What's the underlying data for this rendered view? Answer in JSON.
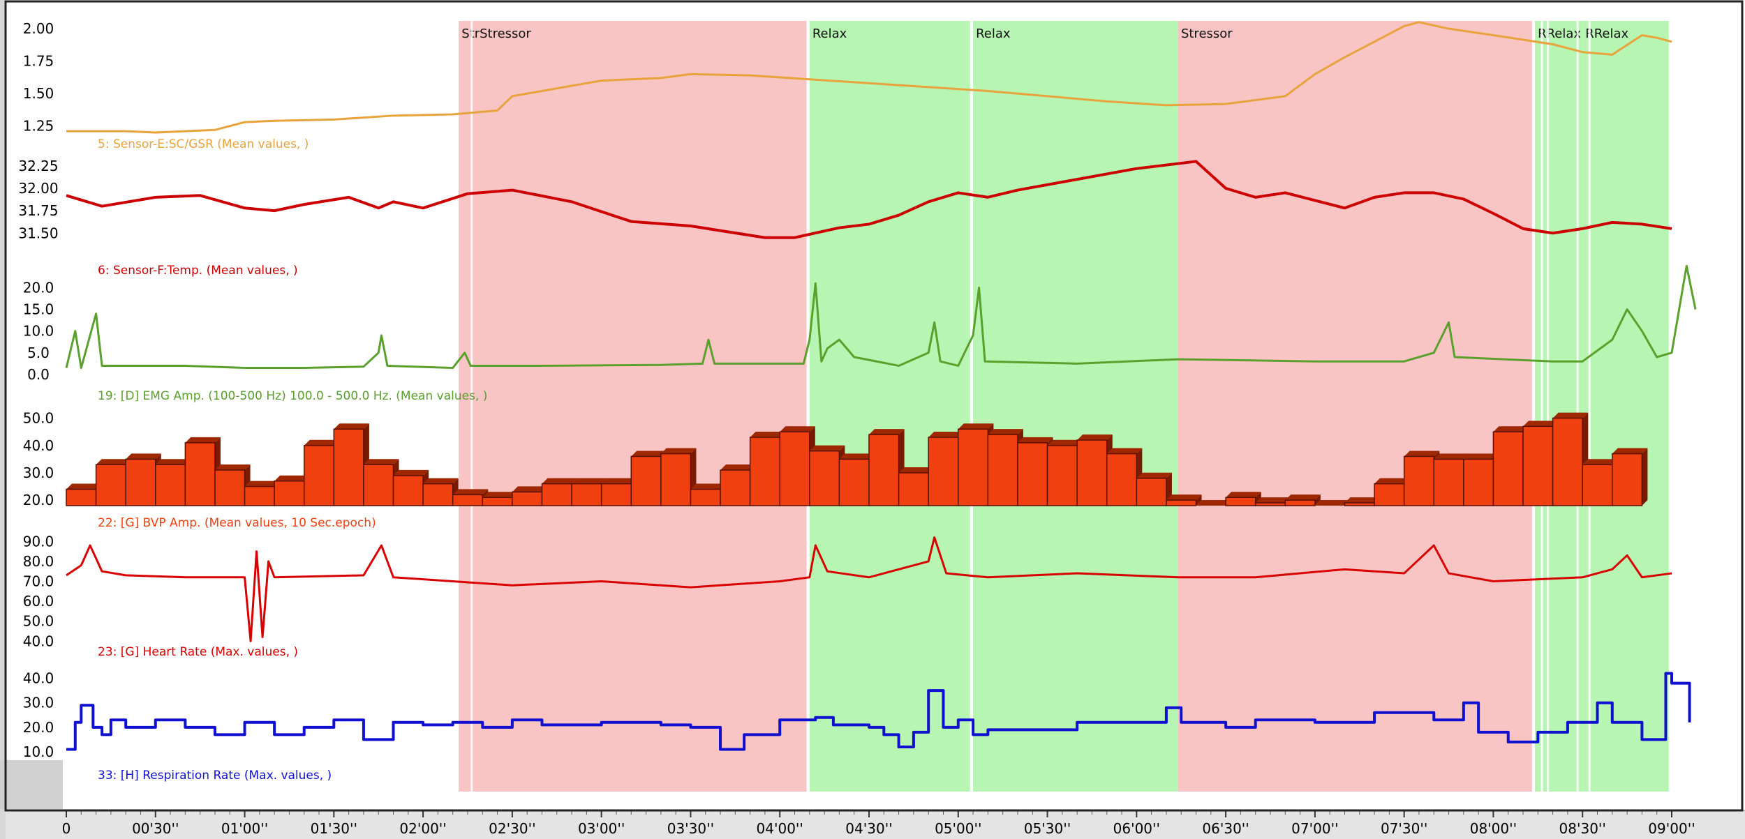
{
  "chart_data": {
    "type": "line",
    "x_axis": {
      "range_seconds": [
        0,
        540
      ],
      "tick_labels": [
        "0",
        "00'30''",
        "01'00''",
        "01'30''",
        "02'00''",
        "02'30''",
        "03'00''",
        "03'30''",
        "04'00''",
        "04'30''",
        "05'00''",
        "05'30''",
        "06'00''",
        "06'30''",
        "07'00''",
        "07'30''",
        "08'00''",
        "08'30''",
        "09'00''"
      ],
      "tick_values": [
        0,
        30,
        60,
        90,
        120,
        150,
        180,
        210,
        240,
        270,
        300,
        330,
        360,
        390,
        420,
        450,
        480,
        510,
        540
      ]
    },
    "segments": [
      {
        "label": "StrStressor",
        "start": 132,
        "end": 249,
        "color": "#f9c4c4"
      },
      {
        "label": "Relax",
        "start": 250,
        "end": 304,
        "color": "#b7f5b2"
      },
      {
        "label": "Relax",
        "start": 305,
        "end": 374,
        "color": "#b7f5b2"
      },
      {
        "label": "Stressor",
        "start": 374,
        "end": 493,
        "color": "#f9c4c4"
      },
      {
        "label": "RRelax",
        "start": 494,
        "end": 510,
        "color": "#b7f5b2"
      },
      {
        "label": "RRelax",
        "start": 510,
        "end": 539,
        "color": "#b7f5b2"
      }
    ],
    "panels": [
      {
        "id": "gsr",
        "label": "5: Sensor-E:SC/GSR (Mean values, )",
        "color": "#e8a33c",
        "yticks": [
          "2.00",
          "1.75",
          "1.50",
          "1.25"
        ],
        "ytick_values": [
          2.0,
          1.75,
          1.5,
          1.25
        ],
        "ylim": [
          1.2,
          2.06
        ],
        "line_width": 3,
        "series": [
          [
            0,
            1.21
          ],
          [
            20,
            1.21
          ],
          [
            30,
            1.2
          ],
          [
            50,
            1.22
          ],
          [
            60,
            1.28
          ],
          [
            70,
            1.29
          ],
          [
            90,
            1.3
          ],
          [
            110,
            1.33
          ],
          [
            130,
            1.34
          ],
          [
            145,
            1.37
          ],
          [
            150,
            1.48
          ],
          [
            160,
            1.52
          ],
          [
            170,
            1.56
          ],
          [
            180,
            1.6
          ],
          [
            200,
            1.62
          ],
          [
            210,
            1.65
          ],
          [
            230,
            1.64
          ],
          [
            250,
            1.61
          ],
          [
            270,
            1.58
          ],
          [
            290,
            1.55
          ],
          [
            310,
            1.52
          ],
          [
            330,
            1.48
          ],
          [
            350,
            1.44
          ],
          [
            370,
            1.41
          ],
          [
            390,
            1.42
          ],
          [
            400,
            1.45
          ],
          [
            410,
            1.48
          ],
          [
            420,
            1.65
          ],
          [
            430,
            1.78
          ],
          [
            440,
            1.9
          ],
          [
            450,
            2.02
          ],
          [
            455,
            2.05
          ],
          [
            465,
            2.0
          ],
          [
            480,
            1.95
          ],
          [
            500,
            1.88
          ],
          [
            510,
            1.82
          ],
          [
            520,
            1.8
          ],
          [
            522,
            1.83
          ],
          [
            530,
            1.95
          ],
          [
            535,
            1.93
          ],
          [
            540,
            1.9
          ]
        ]
      },
      {
        "id": "temp",
        "label": "6: Sensor-F:Temp. (Mean values, )",
        "color": "#cc0000",
        "yticks": [
          "32.25",
          "32.00",
          "31.75",
          "31.50"
        ],
        "ytick_values": [
          32.25,
          32.0,
          31.75,
          31.5
        ],
        "ylim": [
          31.3,
          32.35
        ],
        "line_width": 4,
        "series": [
          [
            0,
            31.92
          ],
          [
            12,
            31.8
          ],
          [
            30,
            31.9
          ],
          [
            45,
            31.92
          ],
          [
            60,
            31.78
          ],
          [
            70,
            31.75
          ],
          [
            80,
            31.82
          ],
          [
            95,
            31.9
          ],
          [
            105,
            31.78
          ],
          [
            110,
            31.85
          ],
          [
            120,
            31.78
          ],
          [
            135,
            31.94
          ],
          [
            150,
            31.98
          ],
          [
            170,
            31.85
          ],
          [
            190,
            31.63
          ],
          [
            210,
            31.58
          ],
          [
            235,
            31.45
          ],
          [
            245,
            31.45
          ],
          [
            260,
            31.56
          ],
          [
            270,
            31.6
          ],
          [
            280,
            31.7
          ],
          [
            290,
            31.85
          ],
          [
            300,
            31.95
          ],
          [
            310,
            31.9
          ],
          [
            320,
            31.98
          ],
          [
            340,
            32.1
          ],
          [
            360,
            32.22
          ],
          [
            380,
            32.3
          ],
          [
            390,
            32.0
          ],
          [
            400,
            31.9
          ],
          [
            410,
            31.95
          ],
          [
            430,
            31.78
          ],
          [
            440,
            31.9
          ],
          [
            450,
            31.95
          ],
          [
            460,
            31.95
          ],
          [
            470,
            31.88
          ],
          [
            480,
            31.72
          ],
          [
            490,
            31.55
          ],
          [
            500,
            31.5
          ],
          [
            510,
            31.55
          ],
          [
            520,
            31.62
          ],
          [
            530,
            31.6
          ],
          [
            540,
            31.55
          ]
        ]
      },
      {
        "id": "emg",
        "label": "19: [D] EMG Amp. (100-500 Hz)  100.0 - 500.0 Hz. (Mean values, )",
        "color": "#5aa02c",
        "yticks": [
          "20.0",
          "15.0",
          "10.0",
          "5.0",
          "0.0"
        ],
        "ytick_values": [
          20,
          15,
          10,
          5,
          0
        ],
        "ylim": [
          -0.5,
          22
        ],
        "line_width": 3,
        "series": [
          [
            0,
            1.5
          ],
          [
            3,
            10
          ],
          [
            5,
            1.5
          ],
          [
            10,
            14
          ],
          [
            12,
            2
          ],
          [
            40,
            2
          ],
          [
            60,
            1.5
          ],
          [
            80,
            1.5
          ],
          [
            100,
            1.8
          ],
          [
            105,
            5
          ],
          [
            106,
            9
          ],
          [
            108,
            2
          ],
          [
            130,
            1.5
          ],
          [
            134,
            5
          ],
          [
            136,
            2
          ],
          [
            160,
            2
          ],
          [
            200,
            2.2
          ],
          [
            214,
            2.5
          ],
          [
            216,
            8
          ],
          [
            218,
            2.5
          ],
          [
            248,
            2.5
          ],
          [
            250,
            8
          ],
          [
            252,
            21
          ],
          [
            254,
            3
          ],
          [
            256,
            6
          ],
          [
            260,
            8
          ],
          [
            265,
            4
          ],
          [
            280,
            2
          ],
          [
            290,
            5
          ],
          [
            292,
            12
          ],
          [
            294,
            3
          ],
          [
            300,
            2
          ],
          [
            305,
            9
          ],
          [
            307,
            20
          ],
          [
            309,
            3
          ],
          [
            340,
            2.5
          ],
          [
            374,
            3.5
          ],
          [
            420,
            3
          ],
          [
            450,
            3
          ],
          [
            460,
            5
          ],
          [
            465,
            12
          ],
          [
            467,
            4
          ],
          [
            500,
            3
          ],
          [
            510,
            3
          ],
          [
            520,
            8
          ],
          [
            525,
            15
          ],
          [
            530,
            10
          ],
          [
            535,
            4
          ],
          [
            540,
            5
          ],
          [
            545,
            25
          ],
          [
            548,
            15
          ]
        ]
      },
      {
        "id": "bvp",
        "label": "22: [G] BVP Amp. (Mean values, 10 Sec.epoch)",
        "color": "#f04010",
        "yticks": [
          "50.0",
          "40.0",
          "30.0",
          "20.0"
        ],
        "ytick_values": [
          50,
          40,
          30,
          20
        ],
        "ylim": [
          18,
          55
        ],
        "bar_width_seconds": 10,
        "series": [
          24,
          33,
          35,
          33,
          41,
          31,
          25,
          27,
          40,
          46,
          33,
          29,
          26,
          22,
          21,
          23,
          26,
          26,
          26,
          36,
          37,
          24,
          31,
          43,
          45,
          38,
          35,
          44,
          30,
          43,
          46,
          44,
          41,
          40,
          42,
          37,
          28,
          20,
          18,
          21,
          19,
          20,
          18,
          19,
          26,
          36,
          35,
          35,
          45,
          47,
          50,
          33,
          37
        ]
      },
      {
        "id": "hr",
        "label": "23: [G] Heart Rate (Max. values, )",
        "color": "#d80000",
        "yticks": [
          "90.0",
          "80.0",
          "70.0",
          "60.0",
          "50.0",
          "40.0"
        ],
        "ytick_values": [
          90,
          80,
          70,
          60,
          50,
          40
        ],
        "ylim": [
          38,
          95
        ],
        "line_width": 3,
        "series": [
          [
            0,
            73
          ],
          [
            5,
            78
          ],
          [
            8,
            88
          ],
          [
            12,
            75
          ],
          [
            20,
            73
          ],
          [
            40,
            72
          ],
          [
            60,
            72
          ],
          [
            62,
            40
          ],
          [
            64,
            85
          ],
          [
            66,
            42
          ],
          [
            68,
            80
          ],
          [
            70,
            72
          ],
          [
            100,
            73
          ],
          [
            106,
            88
          ],
          [
            110,
            72
          ],
          [
            130,
            70
          ],
          [
            150,
            68
          ],
          [
            180,
            70
          ],
          [
            210,
            67
          ],
          [
            240,
            70
          ],
          [
            250,
            72
          ],
          [
            252,
            88
          ],
          [
            256,
            75
          ],
          [
            270,
            72
          ],
          [
            290,
            80
          ],
          [
            292,
            92
          ],
          [
            296,
            74
          ],
          [
            310,
            72
          ],
          [
            340,
            74
          ],
          [
            374,
            72
          ],
          [
            400,
            72
          ],
          [
            430,
            76
          ],
          [
            450,
            74
          ],
          [
            460,
            88
          ],
          [
            465,
            74
          ],
          [
            480,
            70
          ],
          [
            510,
            72
          ],
          [
            520,
            76
          ],
          [
            525,
            83
          ],
          [
            530,
            72
          ],
          [
            540,
            74
          ]
        ]
      },
      {
        "id": "resp",
        "label": "33: [H] Respiration Rate (Max. values, )",
        "color": "#1010d0",
        "yticks": [
          "40.0",
          "30.0",
          "20.0",
          "10.0"
        ],
        "ytick_values": [
          40,
          30,
          20,
          10
        ],
        "ylim": [
          8,
          45
        ],
        "line_width": 4,
        "step": true,
        "series": [
          [
            0,
            11
          ],
          [
            3,
            22
          ],
          [
            5,
            29
          ],
          [
            9,
            20
          ],
          [
            12,
            17
          ],
          [
            15,
            23
          ],
          [
            20,
            20
          ],
          [
            30,
            23
          ],
          [
            40,
            20
          ],
          [
            50,
            17
          ],
          [
            60,
            22
          ],
          [
            70,
            17
          ],
          [
            80,
            20
          ],
          [
            90,
            23
          ],
          [
            100,
            15
          ],
          [
            110,
            22
          ],
          [
            120,
            21
          ],
          [
            130,
            22
          ],
          [
            140,
            20
          ],
          [
            150,
            23
          ],
          [
            160,
            21
          ],
          [
            180,
            22
          ],
          [
            200,
            21
          ],
          [
            210,
            20
          ],
          [
            220,
            11
          ],
          [
            228,
            17
          ],
          [
            240,
            23
          ],
          [
            252,
            24
          ],
          [
            258,
            21
          ],
          [
            270,
            20
          ],
          [
            275,
            17
          ],
          [
            280,
            12
          ],
          [
            285,
            18
          ],
          [
            290,
            35
          ],
          [
            295,
            20
          ],
          [
            300,
            23
          ],
          [
            305,
            17
          ],
          [
            310,
            19
          ],
          [
            340,
            22
          ],
          [
            370,
            28
          ],
          [
            375,
            22
          ],
          [
            390,
            20
          ],
          [
            400,
            23
          ],
          [
            420,
            22
          ],
          [
            440,
            26
          ],
          [
            460,
            23
          ],
          [
            470,
            30
          ],
          [
            475,
            18
          ],
          [
            485,
            14
          ],
          [
            495,
            18
          ],
          [
            505,
            22
          ],
          [
            515,
            30
          ],
          [
            520,
            22
          ],
          [
            530,
            15
          ],
          [
            538,
            42
          ],
          [
            540,
            38
          ],
          [
            546,
            22
          ]
        ]
      }
    ]
  }
}
